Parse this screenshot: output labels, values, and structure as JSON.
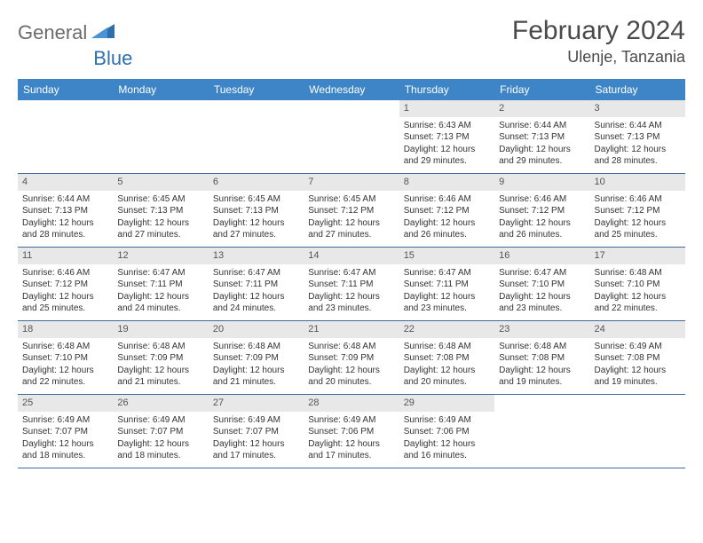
{
  "brand": {
    "text1": "General",
    "text2": "Blue"
  },
  "title": "February 2024",
  "location": "Ulenje, Tanzania",
  "colors": {
    "header_bg": "#3d85c6",
    "header_text": "#ffffff",
    "daynum_bg": "#e8e8e8",
    "row_border": "#3d6a9e",
    "logo_gray": "#6b6b6b",
    "logo_blue": "#2f6fb0"
  },
  "day_headers": [
    "Sunday",
    "Monday",
    "Tuesday",
    "Wednesday",
    "Thursday",
    "Friday",
    "Saturday"
  ],
  "weeks": [
    [
      {
        "n": "",
        "sr": "",
        "ss": "",
        "dl": ""
      },
      {
        "n": "",
        "sr": "",
        "ss": "",
        "dl": ""
      },
      {
        "n": "",
        "sr": "",
        "ss": "",
        "dl": ""
      },
      {
        "n": "",
        "sr": "",
        "ss": "",
        "dl": ""
      },
      {
        "n": "1",
        "sr": "6:43 AM",
        "ss": "7:13 PM",
        "dl": "12 hours and 29 minutes."
      },
      {
        "n": "2",
        "sr": "6:44 AM",
        "ss": "7:13 PM",
        "dl": "12 hours and 29 minutes."
      },
      {
        "n": "3",
        "sr": "6:44 AM",
        "ss": "7:13 PM",
        "dl": "12 hours and 28 minutes."
      }
    ],
    [
      {
        "n": "4",
        "sr": "6:44 AM",
        "ss": "7:13 PM",
        "dl": "12 hours and 28 minutes."
      },
      {
        "n": "5",
        "sr": "6:45 AM",
        "ss": "7:13 PM",
        "dl": "12 hours and 27 minutes."
      },
      {
        "n": "6",
        "sr": "6:45 AM",
        "ss": "7:13 PM",
        "dl": "12 hours and 27 minutes."
      },
      {
        "n": "7",
        "sr": "6:45 AM",
        "ss": "7:12 PM",
        "dl": "12 hours and 27 minutes."
      },
      {
        "n": "8",
        "sr": "6:46 AM",
        "ss": "7:12 PM",
        "dl": "12 hours and 26 minutes."
      },
      {
        "n": "9",
        "sr": "6:46 AM",
        "ss": "7:12 PM",
        "dl": "12 hours and 26 minutes."
      },
      {
        "n": "10",
        "sr": "6:46 AM",
        "ss": "7:12 PM",
        "dl": "12 hours and 25 minutes."
      }
    ],
    [
      {
        "n": "11",
        "sr": "6:46 AM",
        "ss": "7:12 PM",
        "dl": "12 hours and 25 minutes."
      },
      {
        "n": "12",
        "sr": "6:47 AM",
        "ss": "7:11 PM",
        "dl": "12 hours and 24 minutes."
      },
      {
        "n": "13",
        "sr": "6:47 AM",
        "ss": "7:11 PM",
        "dl": "12 hours and 24 minutes."
      },
      {
        "n": "14",
        "sr": "6:47 AM",
        "ss": "7:11 PM",
        "dl": "12 hours and 23 minutes."
      },
      {
        "n": "15",
        "sr": "6:47 AM",
        "ss": "7:11 PM",
        "dl": "12 hours and 23 minutes."
      },
      {
        "n": "16",
        "sr": "6:47 AM",
        "ss": "7:10 PM",
        "dl": "12 hours and 23 minutes."
      },
      {
        "n": "17",
        "sr": "6:48 AM",
        "ss": "7:10 PM",
        "dl": "12 hours and 22 minutes."
      }
    ],
    [
      {
        "n": "18",
        "sr": "6:48 AM",
        "ss": "7:10 PM",
        "dl": "12 hours and 22 minutes."
      },
      {
        "n": "19",
        "sr": "6:48 AM",
        "ss": "7:09 PM",
        "dl": "12 hours and 21 minutes."
      },
      {
        "n": "20",
        "sr": "6:48 AM",
        "ss": "7:09 PM",
        "dl": "12 hours and 21 minutes."
      },
      {
        "n": "21",
        "sr": "6:48 AM",
        "ss": "7:09 PM",
        "dl": "12 hours and 20 minutes."
      },
      {
        "n": "22",
        "sr": "6:48 AM",
        "ss": "7:08 PM",
        "dl": "12 hours and 20 minutes."
      },
      {
        "n": "23",
        "sr": "6:48 AM",
        "ss": "7:08 PM",
        "dl": "12 hours and 19 minutes."
      },
      {
        "n": "24",
        "sr": "6:49 AM",
        "ss": "7:08 PM",
        "dl": "12 hours and 19 minutes."
      }
    ],
    [
      {
        "n": "25",
        "sr": "6:49 AM",
        "ss": "7:07 PM",
        "dl": "12 hours and 18 minutes."
      },
      {
        "n": "26",
        "sr": "6:49 AM",
        "ss": "7:07 PM",
        "dl": "12 hours and 18 minutes."
      },
      {
        "n": "27",
        "sr": "6:49 AM",
        "ss": "7:07 PM",
        "dl": "12 hours and 17 minutes."
      },
      {
        "n": "28",
        "sr": "6:49 AM",
        "ss": "7:06 PM",
        "dl": "12 hours and 17 minutes."
      },
      {
        "n": "29",
        "sr": "6:49 AM",
        "ss": "7:06 PM",
        "dl": "12 hours and 16 minutes."
      },
      {
        "n": "",
        "sr": "",
        "ss": "",
        "dl": ""
      },
      {
        "n": "",
        "sr": "",
        "ss": "",
        "dl": ""
      }
    ]
  ],
  "labels": {
    "sunrise": "Sunrise:",
    "sunset": "Sunset:",
    "daylight": "Daylight:"
  }
}
